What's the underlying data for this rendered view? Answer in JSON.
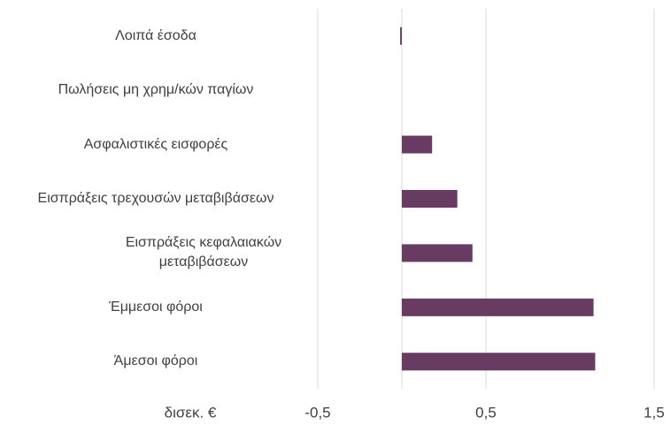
{
  "chart_data": {
    "type": "bar",
    "orientation": "horizontal",
    "x_axis_label": "δισεκ. €",
    "categories": [
      "Λοιπά έσοδα",
      "Πωλήσεις μη χρημ/κών παγίων",
      "Ασφαλιστικές εισφορές",
      "Εισπράξεις τρεχουσών μεταβιβάσεων",
      "Εισπράξεις κεφαλαιακών μεταβιβάσεων",
      "Έμμεσοι φόροι",
      "Άμεσοι φόροι"
    ],
    "values": [
      -0.01,
      0,
      0.18,
      0.33,
      0.42,
      1.14,
      1.15
    ],
    "color": "#683b63",
    "xlim": [
      -0.5,
      1.5
    ],
    "xticks": [
      {
        "value": -0.5,
        "label": "-0,5"
      },
      {
        "value": 0.5,
        "label": "0,5"
      },
      {
        "value": 1.5,
        "label": "1,5"
      }
    ],
    "grid": true
  }
}
